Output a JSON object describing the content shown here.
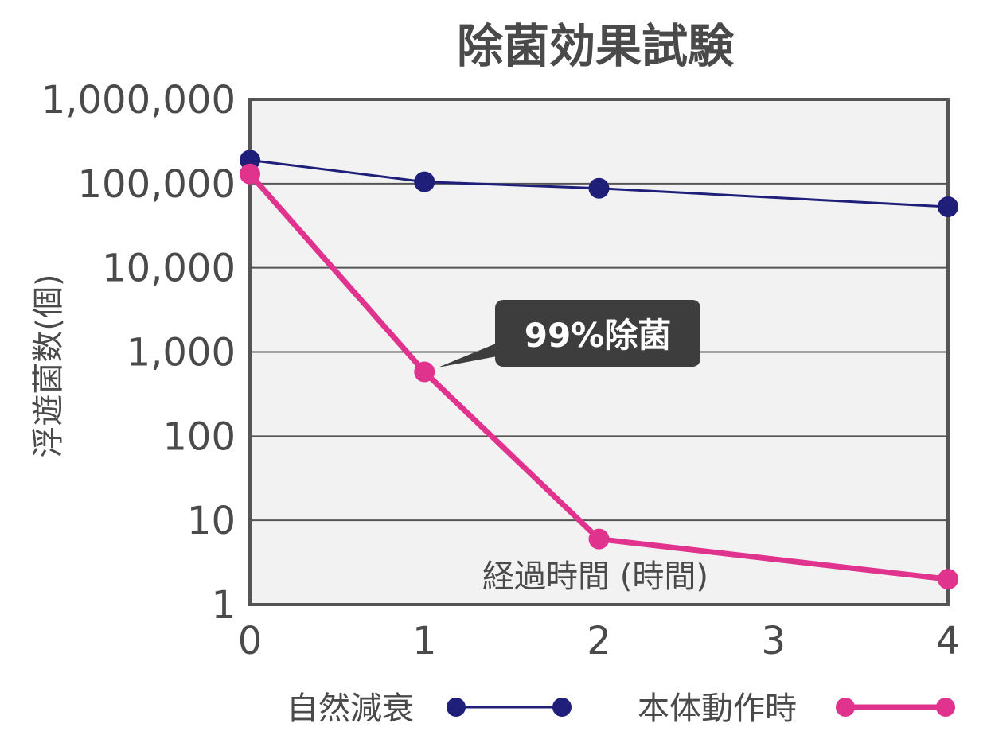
{
  "chart_data": {
    "type": "line",
    "title": "除菌効果試験",
    "xlabel": "経過時間 (時間)",
    "ylabel": "浮遊菌数(個)",
    "x": [
      0,
      1,
      2,
      3,
      4
    ],
    "y_scale": "log",
    "ylim": [
      1,
      1000000
    ],
    "xlim": [
      0,
      4
    ],
    "y_tick_labels": [
      "1",
      "10",
      "100",
      "1,000",
      "10,000",
      "100,000",
      "1,000,000"
    ],
    "x_tick_labels": [
      "0",
      "1",
      "2",
      "3",
      "4"
    ],
    "grid": "horizontal",
    "legend_position": "bottom",
    "series": [
      {
        "name": "自然減衰",
        "color": "#1f1f7a",
        "x": [
          0,
          1,
          2,
          4
        ],
        "y": [
          190000,
          105000,
          88000,
          53000
        ]
      },
      {
        "name": "本体動作時",
        "color": "#e0338e",
        "x": [
          0,
          1,
          2,
          4
        ],
        "y": [
          130000,
          580,
          6,
          2
        ]
      }
    ],
    "annotations": [
      {
        "text": "99%除菌",
        "x": 1,
        "y": 580
      }
    ],
    "plot_background": "#f2f2f2",
    "frame_color": "#555555",
    "grid_color": "#555555"
  }
}
